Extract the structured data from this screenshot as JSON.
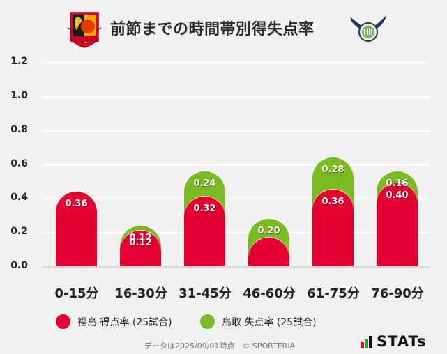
{
  "header": {
    "title": "前節までの時間帯別得失点率",
    "home_logo": "fukushima-united-fc-crest",
    "away_logo": "gainare-tottori-crest"
  },
  "colors": {
    "home": "#e60032",
    "away": "#7aba22",
    "background": "#f1f1f1",
    "grid": "#ffffff"
  },
  "axis": {
    "yticks": [
      "1.2",
      "1.0",
      "0.8",
      "0.6",
      "0.4",
      "0.2",
      "0.0"
    ]
  },
  "bars": [
    {
      "category": "0-15分",
      "home": 0.36,
      "away": 0.08,
      "home_label": "0.36",
      "away_label": ""
    },
    {
      "category": "16-30分",
      "home": 0.12,
      "away": 0.12,
      "home_label": "0.12",
      "away_label": "0.12"
    },
    {
      "category": "31-45分",
      "home": 0.32,
      "away": 0.24,
      "home_label": "0.32",
      "away_label": "0.24"
    },
    {
      "category": "46-60分",
      "home": 0.08,
      "away": 0.2,
      "home_label": "",
      "away_label": "0.20"
    },
    {
      "category": "61-75分",
      "home": 0.36,
      "away": 0.28,
      "home_label": "0.36",
      "away_label": "0.28"
    },
    {
      "category": "76-90分",
      "home": 0.4,
      "away": 0.16,
      "home_label": "0.40",
      "away_label": "0.16"
    }
  ],
  "legend": {
    "home": "福島 得点率 (25試合)",
    "away": "鳥取 失点率 (25試合)"
  },
  "footer": {
    "note": "データは2025/09/01時点　© SPORTERIA",
    "brand": "STATs"
  },
  "chart_data": {
    "type": "bar",
    "stacked": true,
    "title": "前節までの時間帯別得失点率",
    "categories": [
      "0-15分",
      "16-30分",
      "31-45分",
      "46-60分",
      "61-75分",
      "76-90分"
    ],
    "series": [
      {
        "name": "福島 得点率 (25試合)",
        "color": "#e60032",
        "values": [
          0.36,
          0.12,
          0.32,
          0.08,
          0.36,
          0.4
        ]
      },
      {
        "name": "鳥取 失点率 (25試合)",
        "color": "#7aba22",
        "values": [
          0.08,
          0.12,
          0.24,
          0.2,
          0.28,
          0.16
        ]
      }
    ],
    "xlabel": "",
    "ylabel": "",
    "ylim": [
      0,
      1.2
    ],
    "yticks": [
      0.0,
      0.2,
      0.4,
      0.6,
      0.8,
      1.0,
      1.2
    ],
    "grid": true,
    "legend_position": "bottom",
    "annotations": [
      "データは2025/09/01時点　© SPORTERIA"
    ]
  }
}
